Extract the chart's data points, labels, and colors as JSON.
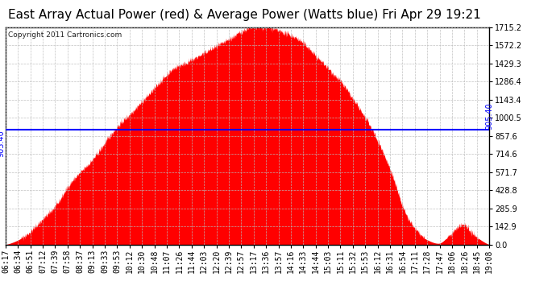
{
  "title": "East Array Actual Power (red) & Average Power (Watts blue) Fri Apr 29 19:21",
  "copyright": "Copyright 2011 Cartronics.com",
  "avg_power": 905.4,
  "ymax": 1715.2,
  "yticks": [
    0.0,
    142.9,
    285.9,
    428.8,
    571.7,
    714.6,
    857.6,
    1000.5,
    1143.4,
    1286.4,
    1429.3,
    1572.2,
    1715.2
  ],
  "ytick_labels": [
    "0.0",
    "142.9",
    "285.9",
    "428.8",
    "571.7",
    "714.6",
    "857.6",
    "1000.5",
    "1143.4",
    "1286.4",
    "1429.3",
    "1572.2",
    "1715.2"
  ],
  "xtick_labels": [
    "06:17",
    "06:34",
    "06:51",
    "07:12",
    "07:39",
    "07:58",
    "08:37",
    "09:13",
    "09:33",
    "09:53",
    "10:12",
    "10:30",
    "10:48",
    "11:07",
    "11:26",
    "11:44",
    "12:03",
    "12:20",
    "12:39",
    "12:57",
    "13:17",
    "13:36",
    "13:57",
    "14:16",
    "14:33",
    "14:44",
    "15:03",
    "15:11",
    "15:32",
    "15:53",
    "16:12",
    "16:31",
    "16:54",
    "17:11",
    "17:28",
    "17:47",
    "18:06",
    "18:26",
    "18:45",
    "19:08"
  ],
  "fill_color": "#FF0000",
  "line_color": "#0000FF",
  "bg_color": "#FFFFFF",
  "grid_color": "#BBBBBB",
  "title_fontsize": 11,
  "label_fontsize": 7,
  "copyright_fontsize": 6.5
}
